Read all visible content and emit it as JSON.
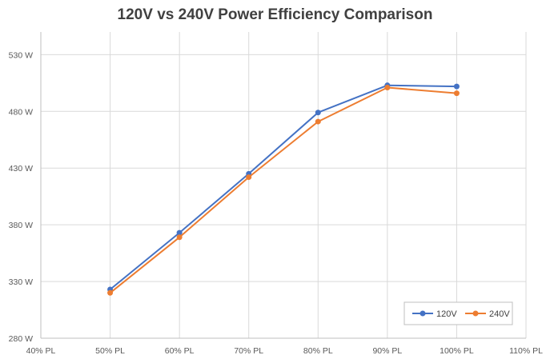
{
  "chart_data": {
    "type": "line",
    "title": "120V vs 240V Power Efficiency Comparison",
    "xlabel": "",
    "ylabel": "",
    "x_ticks": [
      "40% PL",
      "50% PL",
      "60% PL",
      "70% PL",
      "80% PL",
      "90% PL",
      "100% PL",
      "110% PL"
    ],
    "x_tick_values": [
      40,
      50,
      60,
      70,
      80,
      90,
      100,
      110
    ],
    "xlim": [
      40,
      110
    ],
    "y_ticks": [
      "280 W",
      "330 W",
      "380 W",
      "430 W",
      "480 W",
      "530 W"
    ],
    "y_tick_values": [
      280,
      330,
      380,
      430,
      480,
      530
    ],
    "ylim": [
      280,
      550
    ],
    "grid": true,
    "legend_position": "bottom-right",
    "x": [
      50,
      60,
      70,
      80,
      90,
      100
    ],
    "series": [
      {
        "name": "120V",
        "color": "#4472C4",
        "values": [
          323,
          373,
          425,
          479,
          503,
          502
        ]
      },
      {
        "name": "240V",
        "color": "#ED7D31",
        "values": [
          320,
          369,
          422,
          471,
          501,
          496
        ]
      }
    ]
  }
}
